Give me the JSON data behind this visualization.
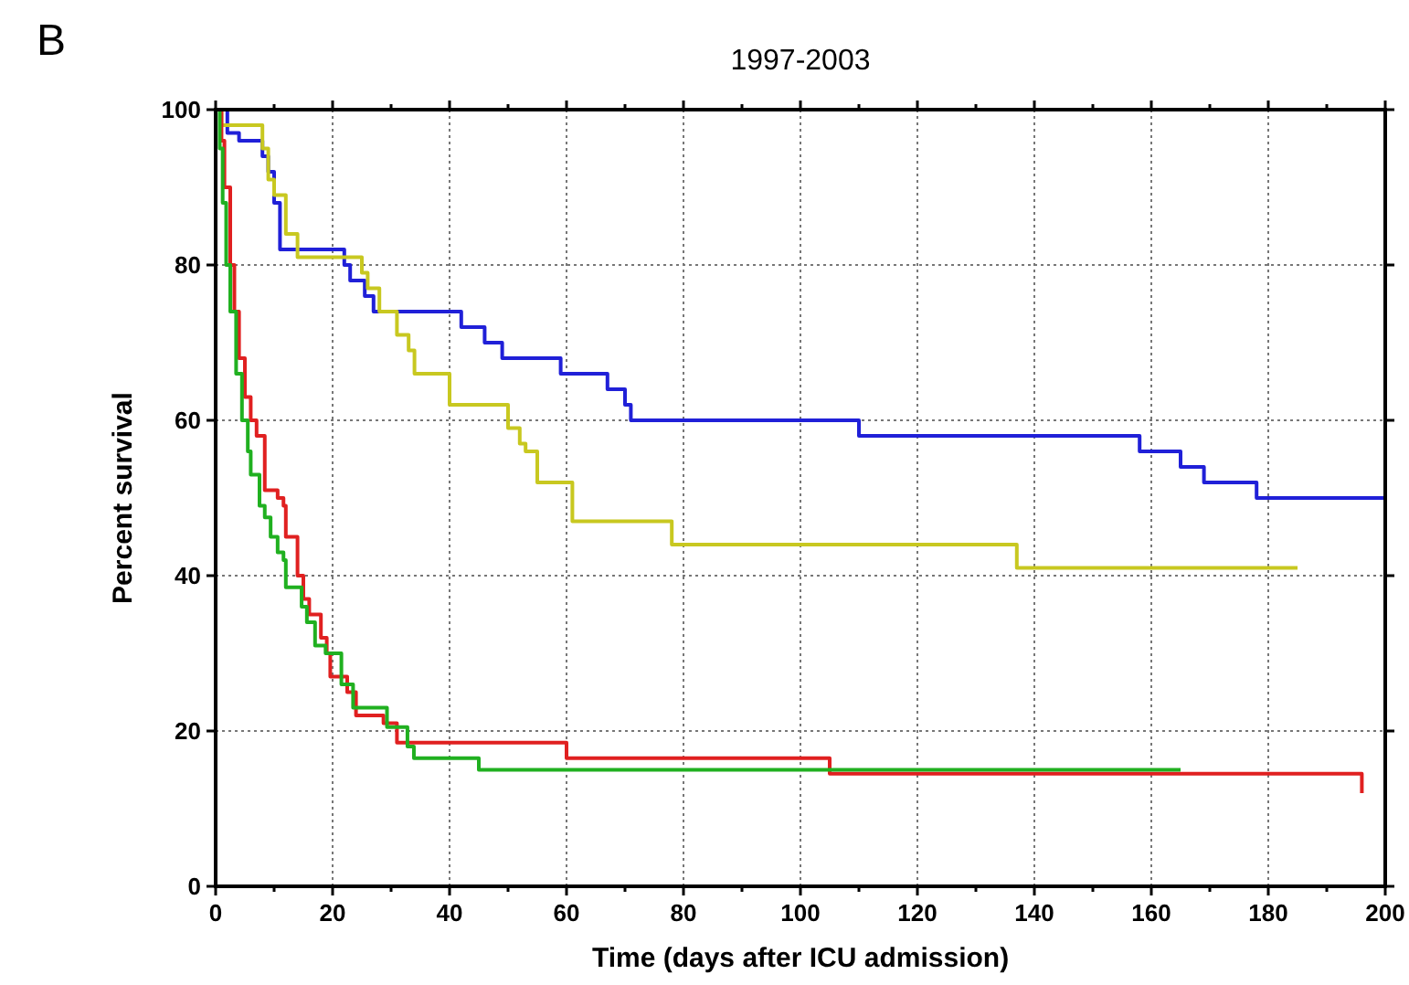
{
  "chart_data": {
    "type": "step",
    "title": "1997-2003",
    "xlabel": "Time (days after ICU admission)",
    "ylabel": "Percent survival",
    "annotations": [
      "B"
    ],
    "xlim": [
      0,
      200
    ],
    "ylim": [
      0,
      100
    ],
    "xticks": [
      0,
      {
        "value": 10,
        "label": null
      },
      20,
      {
        "value": 30,
        "label": null
      },
      40,
      {
        "value": 50,
        "label": null
      },
      60,
      {
        "value": 70,
        "label": null
      },
      80,
      {
        "value": 90,
        "label": null
      },
      100,
      {
        "value": 110,
        "label": null
      },
      120,
      {
        "value": 130,
        "label": null
      },
      140,
      {
        "value": 150,
        "label": null
      },
      160,
      {
        "value": 170,
        "label": null
      },
      180,
      {
        "value": 190,
        "label": null
      },
      200
    ],
    "yticks": [
      0,
      20,
      40,
      60,
      80,
      100
    ],
    "grid": true,
    "series": [
      {
        "color": "#2020d8",
        "x": [
          0,
          2,
          4,
          8,
          9,
          10,
          11,
          22,
          23,
          25.5,
          27,
          42,
          46,
          49,
          59,
          67,
          70,
          71,
          110,
          158,
          165,
          169,
          178,
          200
        ],
        "values": [
          100,
          97,
          96,
          94,
          92,
          88,
          82,
          80,
          78,
          76,
          74,
          72,
          70,
          68,
          66,
          64,
          62,
          60,
          58,
          56,
          54,
          52,
          50,
          50
        ]
      },
      {
        "color": "#c8c820",
        "x": [
          0,
          1,
          8,
          9,
          10,
          12,
          14,
          25,
          26,
          28,
          31,
          33,
          34,
          40,
          50,
          52,
          53,
          55,
          61,
          78,
          137,
          185
        ],
        "values": [
          100,
          98,
          95,
          91,
          89,
          84,
          81,
          79,
          77,
          74,
          71,
          69,
          66,
          62,
          59,
          57,
          56,
          52,
          47,
          44,
          41,
          41
        ]
      },
      {
        "color": "#e02020",
        "x": [
          0,
          1,
          1.5,
          2.5,
          3.2,
          4,
          5,
          6,
          7,
          8.4,
          10.6,
          11.6,
          12,
          14,
          15,
          16,
          18,
          19,
          19.6,
          22.5,
          24,
          28.7,
          31,
          60,
          105,
          196
        ],
        "values": [
          100,
          96,
          90,
          80,
          74,
          68,
          63,
          60,
          58,
          51,
          50,
          49,
          45,
          40,
          37,
          35,
          32,
          30,
          27,
          25,
          22,
          21,
          18.5,
          16.5,
          14.5,
          12
        ]
      },
      {
        "color": "#20b020",
        "x": [
          0,
          0.7,
          1.2,
          1.8,
          2.5,
          3.5,
          4.5,
          5.5,
          6,
          7.5,
          8.4,
          9.4,
          10.6,
          11.6,
          12,
          14.7,
          15.6,
          17,
          18.8,
          21.5,
          23.5,
          29.3,
          32.8,
          33.9,
          45,
          165
        ],
        "values": [
          100,
          95,
          88,
          80,
          74,
          66,
          60,
          56,
          53,
          49,
          47.5,
          45,
          43,
          42,
          38.5,
          36,
          34,
          31,
          30,
          26,
          23,
          20.5,
          18,
          16.5,
          15,
          15
        ]
      }
    ]
  }
}
